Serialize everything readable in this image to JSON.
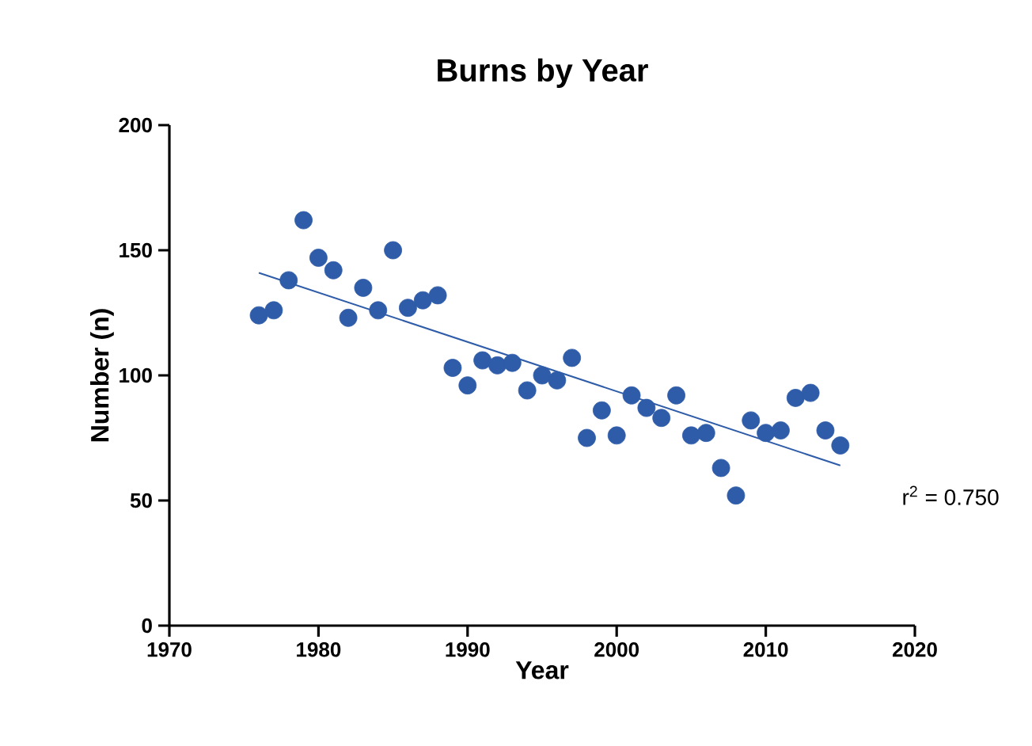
{
  "chart_data": {
    "type": "scatter",
    "title": "Burns by Year",
    "xlabel": "Year",
    "ylabel": "Number (n)",
    "xlim": [
      1970,
      2020
    ],
    "xticks": [
      1970,
      1980,
      1990,
      2000,
      2010,
      2020
    ],
    "ylim": [
      0,
      200
    ],
    "yticks": [
      0,
      50,
      100,
      150,
      200
    ],
    "grid": false,
    "series": [
      {
        "type": "scatter",
        "marker": "circle",
        "color": "#2f5ca8",
        "x": [
          1976,
          1977,
          1978,
          1979,
          1980,
          1981,
          1982,
          1983,
          1984,
          1985,
          1986,
          1987,
          1988,
          1989,
          1990,
          1991,
          1992,
          1993,
          1994,
          1995,
          1996,
          1997,
          1998,
          1999,
          2000,
          2001,
          2002,
          2003,
          2004,
          2005,
          2006,
          2007,
          2008,
          2009,
          2010,
          2011,
          2012,
          2013,
          2014,
          2015
        ],
        "values": [
          124,
          126,
          138,
          162,
          147,
          142,
          123,
          135,
          126,
          150,
          127,
          130,
          132,
          103,
          96,
          106,
          104,
          105,
          94,
          100,
          98,
          107,
          75,
          86,
          76,
          92,
          87,
          83,
          92,
          76,
          77,
          63,
          52,
          82,
          77,
          78,
          91,
          93,
          78,
          72
        ]
      },
      {
        "type": "line",
        "color": "#2f5ca8",
        "x": [
          1976,
          2015
        ],
        "values": [
          141,
          64
        ]
      }
    ],
    "annotations": [
      "r$^{2}$ = 0.750"
    ]
  }
}
